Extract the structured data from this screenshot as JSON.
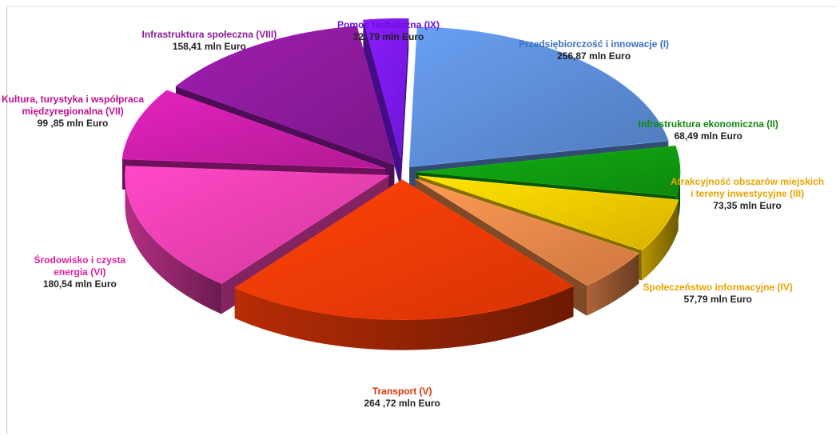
{
  "chart_data": {
    "type": "pie",
    "title": "",
    "unit": "mln Euro",
    "slices": [
      {
        "label": "Przedsiębiorczość i innowacje (I)",
        "value": 256.87,
        "value_label": "256,87 mln Euro",
        "color": "#5b8bd3",
        "label_color": "#3a6fc0"
      },
      {
        "label": "Infrastruktura ekonomiczna (II)",
        "value": 68.49,
        "value_label": "68,49 mln Euro",
        "color": "#109a10",
        "label_color": "#0f8a0f"
      },
      {
        "label": "Atrakcyjność obszarów miejskich i tereny inwestycyjne (III)",
        "value": 73.35,
        "value_label": "73,35 mln Euro",
        "color": "#f7c800",
        "label_color": "#e8a400"
      },
      {
        "label": "Społeczeństwo informacyjne (IV)",
        "value": 57.79,
        "value_label": "57,79 mln Euro",
        "color": "#e9874a",
        "label_color": "#e8a400"
      },
      {
        "label": "Transport (V)",
        "value": 264.72,
        "value_label": "264 ,72 mln Euro",
        "color": "#f43a06",
        "label_color": "#e03000"
      },
      {
        "label": "Środowisko i czysta energia (VI)",
        "value": 180.54,
        "value_label": "180,54 mln Euro",
        "color": "#ee3fae",
        "label_color": "#e0209a"
      },
      {
        "label": "Kultura, turystyka i współpraca międzyregionalna (VII)",
        "value": 99.85,
        "value_label": "99 ,85 mln Euro",
        "color": "#c81ea6",
        "label_color": "#c0108f"
      },
      {
        "label": "Infrastruktura społeczna (VIII)",
        "value": 158.41,
        "value_label": "158,41 mln Euro",
        "color": "#8b1a9a",
        "label_color": "#8b1a9a"
      },
      {
        "label": "Pomoc techniczna (IX)",
        "value": 32.79,
        "value_label": "32, 79 mln Euro",
        "color": "#7a19f2",
        "label_color": "#6b10e0"
      }
    ],
    "display_labels": [
      {
        "lines": [
          "Przedsiębiorczość i innowacje (I)"
        ],
        "value_label": "256,87 mln Euro"
      },
      {
        "lines": [
          "Infrastruktura ekonomiczna (II)"
        ],
        "value_label": "68,49 mln Euro"
      },
      {
        "lines": [
          "Atrakcyjność obszarów  miejskich",
          "i tereny inwestycyjne (III)"
        ],
        "value_label": "73,35  mln Euro"
      },
      {
        "lines": [
          "Społeczeństwo informacyjne (IV)"
        ],
        "value_label": "57,79 mln Euro"
      },
      {
        "lines": [
          "Transport (V)"
        ],
        "value_label": "264 ,72 mln Euro"
      },
      {
        "lines": [
          "Środowisko i czysta",
          "energia (VI)"
        ],
        "value_label": "180,54 mln Euro"
      },
      {
        "lines": [
          "Kultura, turystyka i współpraca",
          "międzyregionalna (VII)"
        ],
        "value_label": "99 ,85 mln Euro"
      },
      {
        "lines": [
          "Infrastruktura społeczna (VIII)"
        ],
        "value_label": "158,41 mln Euro"
      },
      {
        "lines": [
          "Pomoc techniczna (IX)"
        ],
        "value_label": "32, 79 mln Euro"
      }
    ],
    "style": "3d-exploded-pie",
    "legend": "none"
  }
}
